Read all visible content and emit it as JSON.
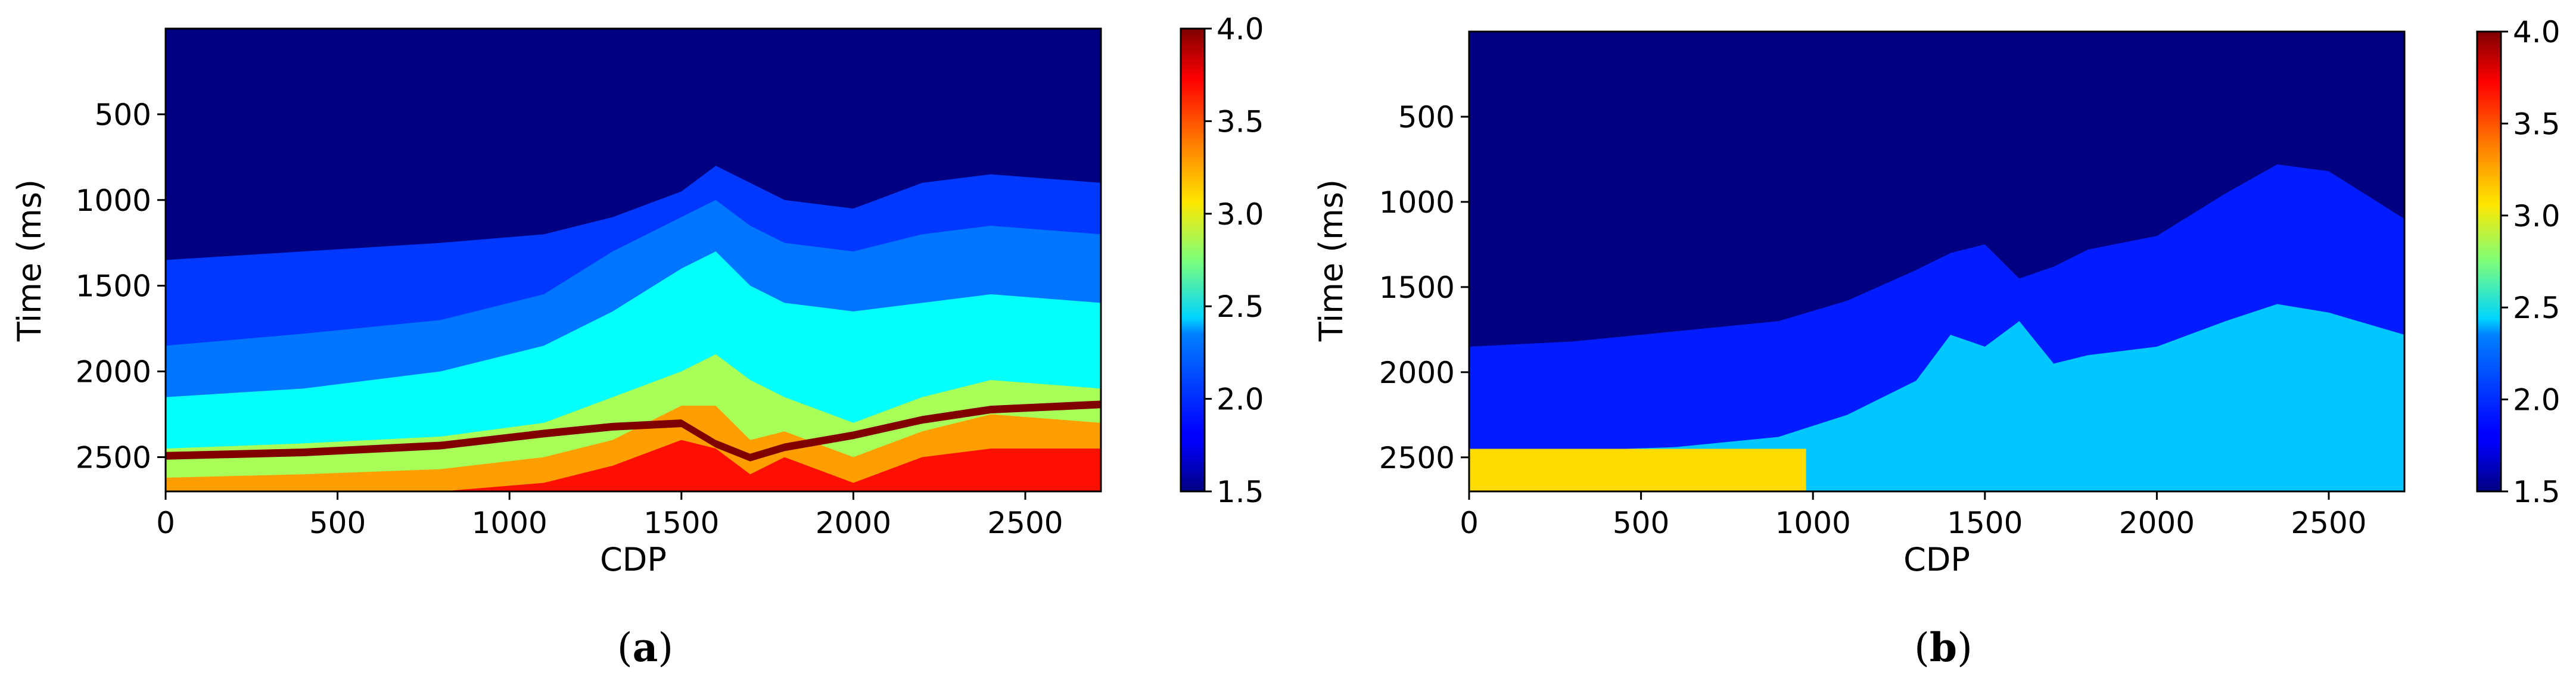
{
  "figure": {
    "captions": [
      {
        "open": "(",
        "letter": "a",
        "close": ")"
      },
      {
        "open": "(",
        "letter": "b",
        "close": ")"
      }
    ]
  },
  "chart_data": [
    {
      "type": "heatmap",
      "panel": "a",
      "title": "",
      "xlabel": "CDP",
      "ylabel": "Time (ms)",
      "xlim": [
        0,
        2720
      ],
      "ylim": [
        2700,
        0
      ],
      "y_inverted": true,
      "x_ticks": [
        0,
        500,
        1000,
        1500,
        2000,
        2500
      ],
      "y_ticks": [
        500,
        1000,
        1500,
        2000,
        2500
      ],
      "colormap": "jet",
      "colorbar": {
        "min": 1.5,
        "max": 4.0,
        "ticks": [
          "1.5",
          "2.0",
          "2.5",
          "3.0",
          "3.5",
          "4.0"
        ]
      },
      "x_samples": [
        0,
        400,
        800,
        1100,
        1300,
        1500,
        1600,
        1700,
        1800,
        2000,
        2200,
        2400,
        2720
      ],
      "horizons": [
        {
          "value": 1.5,
          "depth": [
            650,
            650,
            650,
            650,
            650,
            650,
            650,
            650,
            650,
            650,
            650,
            650,
            650
          ]
        },
        {
          "value": 1.95,
          "depth": [
            1350,
            1300,
            1250,
            1200,
            1100,
            950,
            800,
            900,
            1000,
            1050,
            900,
            850,
            900
          ]
        },
        {
          "value": 2.1,
          "depth": [
            1850,
            1780,
            1700,
            1550,
            1300,
            1100,
            1000,
            1150,
            1250,
            1300,
            1200,
            1150,
            1200
          ]
        },
        {
          "value": 2.45,
          "depth": [
            2150,
            2100,
            2000,
            1850,
            1650,
            1400,
            1300,
            1500,
            1600,
            1650,
            1600,
            1550,
            1600
          ]
        },
        {
          "value": 2.85,
          "depth": [
            2450,
            2420,
            2380,
            2300,
            2150,
            2000,
            1900,
            2050,
            2150,
            2300,
            2150,
            2050,
            2100
          ]
        },
        {
          "value": 3.3,
          "depth": [
            2620,
            2600,
            2570,
            2500,
            2400,
            2200,
            2200,
            2400,
            2350,
            2500,
            2350,
            2250,
            2300
          ]
        },
        {
          "value": 3.65,
          "depth": [
            2700,
            2700,
            2700,
            2650,
            2550,
            2400,
            2450,
            2600,
            2500,
            2650,
            2500,
            2450,
            2450
          ]
        }
      ],
      "accent_layers": [
        {
          "value": 4.0,
          "thickness": 45,
          "depth": [
            2470,
            2450,
            2410,
            2340,
            2300,
            2280,
            2400,
            2480,
            2420,
            2350,
            2260,
            2200,
            2170
          ]
        }
      ]
    },
    {
      "type": "heatmap",
      "panel": "b",
      "title": "",
      "xlabel": "CDP",
      "ylabel": "Time (ms)",
      "xlim": [
        0,
        2720
      ],
      "ylim": [
        2700,
        0
      ],
      "y_inverted": true,
      "x_ticks": [
        0,
        500,
        1000,
        1500,
        2000,
        2500
      ],
      "y_ticks": [
        500,
        1000,
        1500,
        2000,
        2500
      ],
      "colormap": "jet",
      "colorbar": {
        "min": 1.5,
        "max": 4.0,
        "ticks": [
          "1.5",
          "2.0",
          "2.5",
          "3.0",
          "3.5",
          "4.0"
        ]
      },
      "x_samples": [
        0,
        300,
        600,
        900,
        1100,
        1300,
        1400,
        1500,
        1600,
        1700,
        1800,
        2000,
        2200,
        2350,
        2500,
        2720
      ],
      "horizons": [
        {
          "value": 1.5,
          "depth": [
            650,
            650,
            650,
            650,
            650,
            650,
            650,
            650,
            650,
            650,
            650,
            650,
            650,
            650,
            650,
            650
          ]
        },
        {
          "value": 1.88,
          "depth": [
            1850,
            1820,
            1760,
            1700,
            1580,
            1400,
            1300,
            1250,
            1450,
            1380,
            1280,
            1200,
            950,
            780,
            820,
            1100
          ]
        },
        {
          "value": 2.3,
          "depth": [
            2480,
            2460,
            2440,
            2380,
            2250,
            2050,
            1780,
            1850,
            1700,
            1950,
            1900,
            1850,
            1700,
            1600,
            1650,
            1780
          ]
        },
        {
          "value": 3.55,
          "depth": [
            2700,
            2700,
            2700,
            2700,
            2700,
            2700,
            2700,
            2700,
            2700,
            2700,
            2700,
            2700,
            2700,
            2700,
            2700,
            2700
          ]
        }
      ],
      "vertical_zones": [
        {
          "value": 3.15,
          "x_range": [
            0,
            980
          ],
          "depth_range": [
            2450,
            2700
          ]
        }
      ]
    }
  ]
}
